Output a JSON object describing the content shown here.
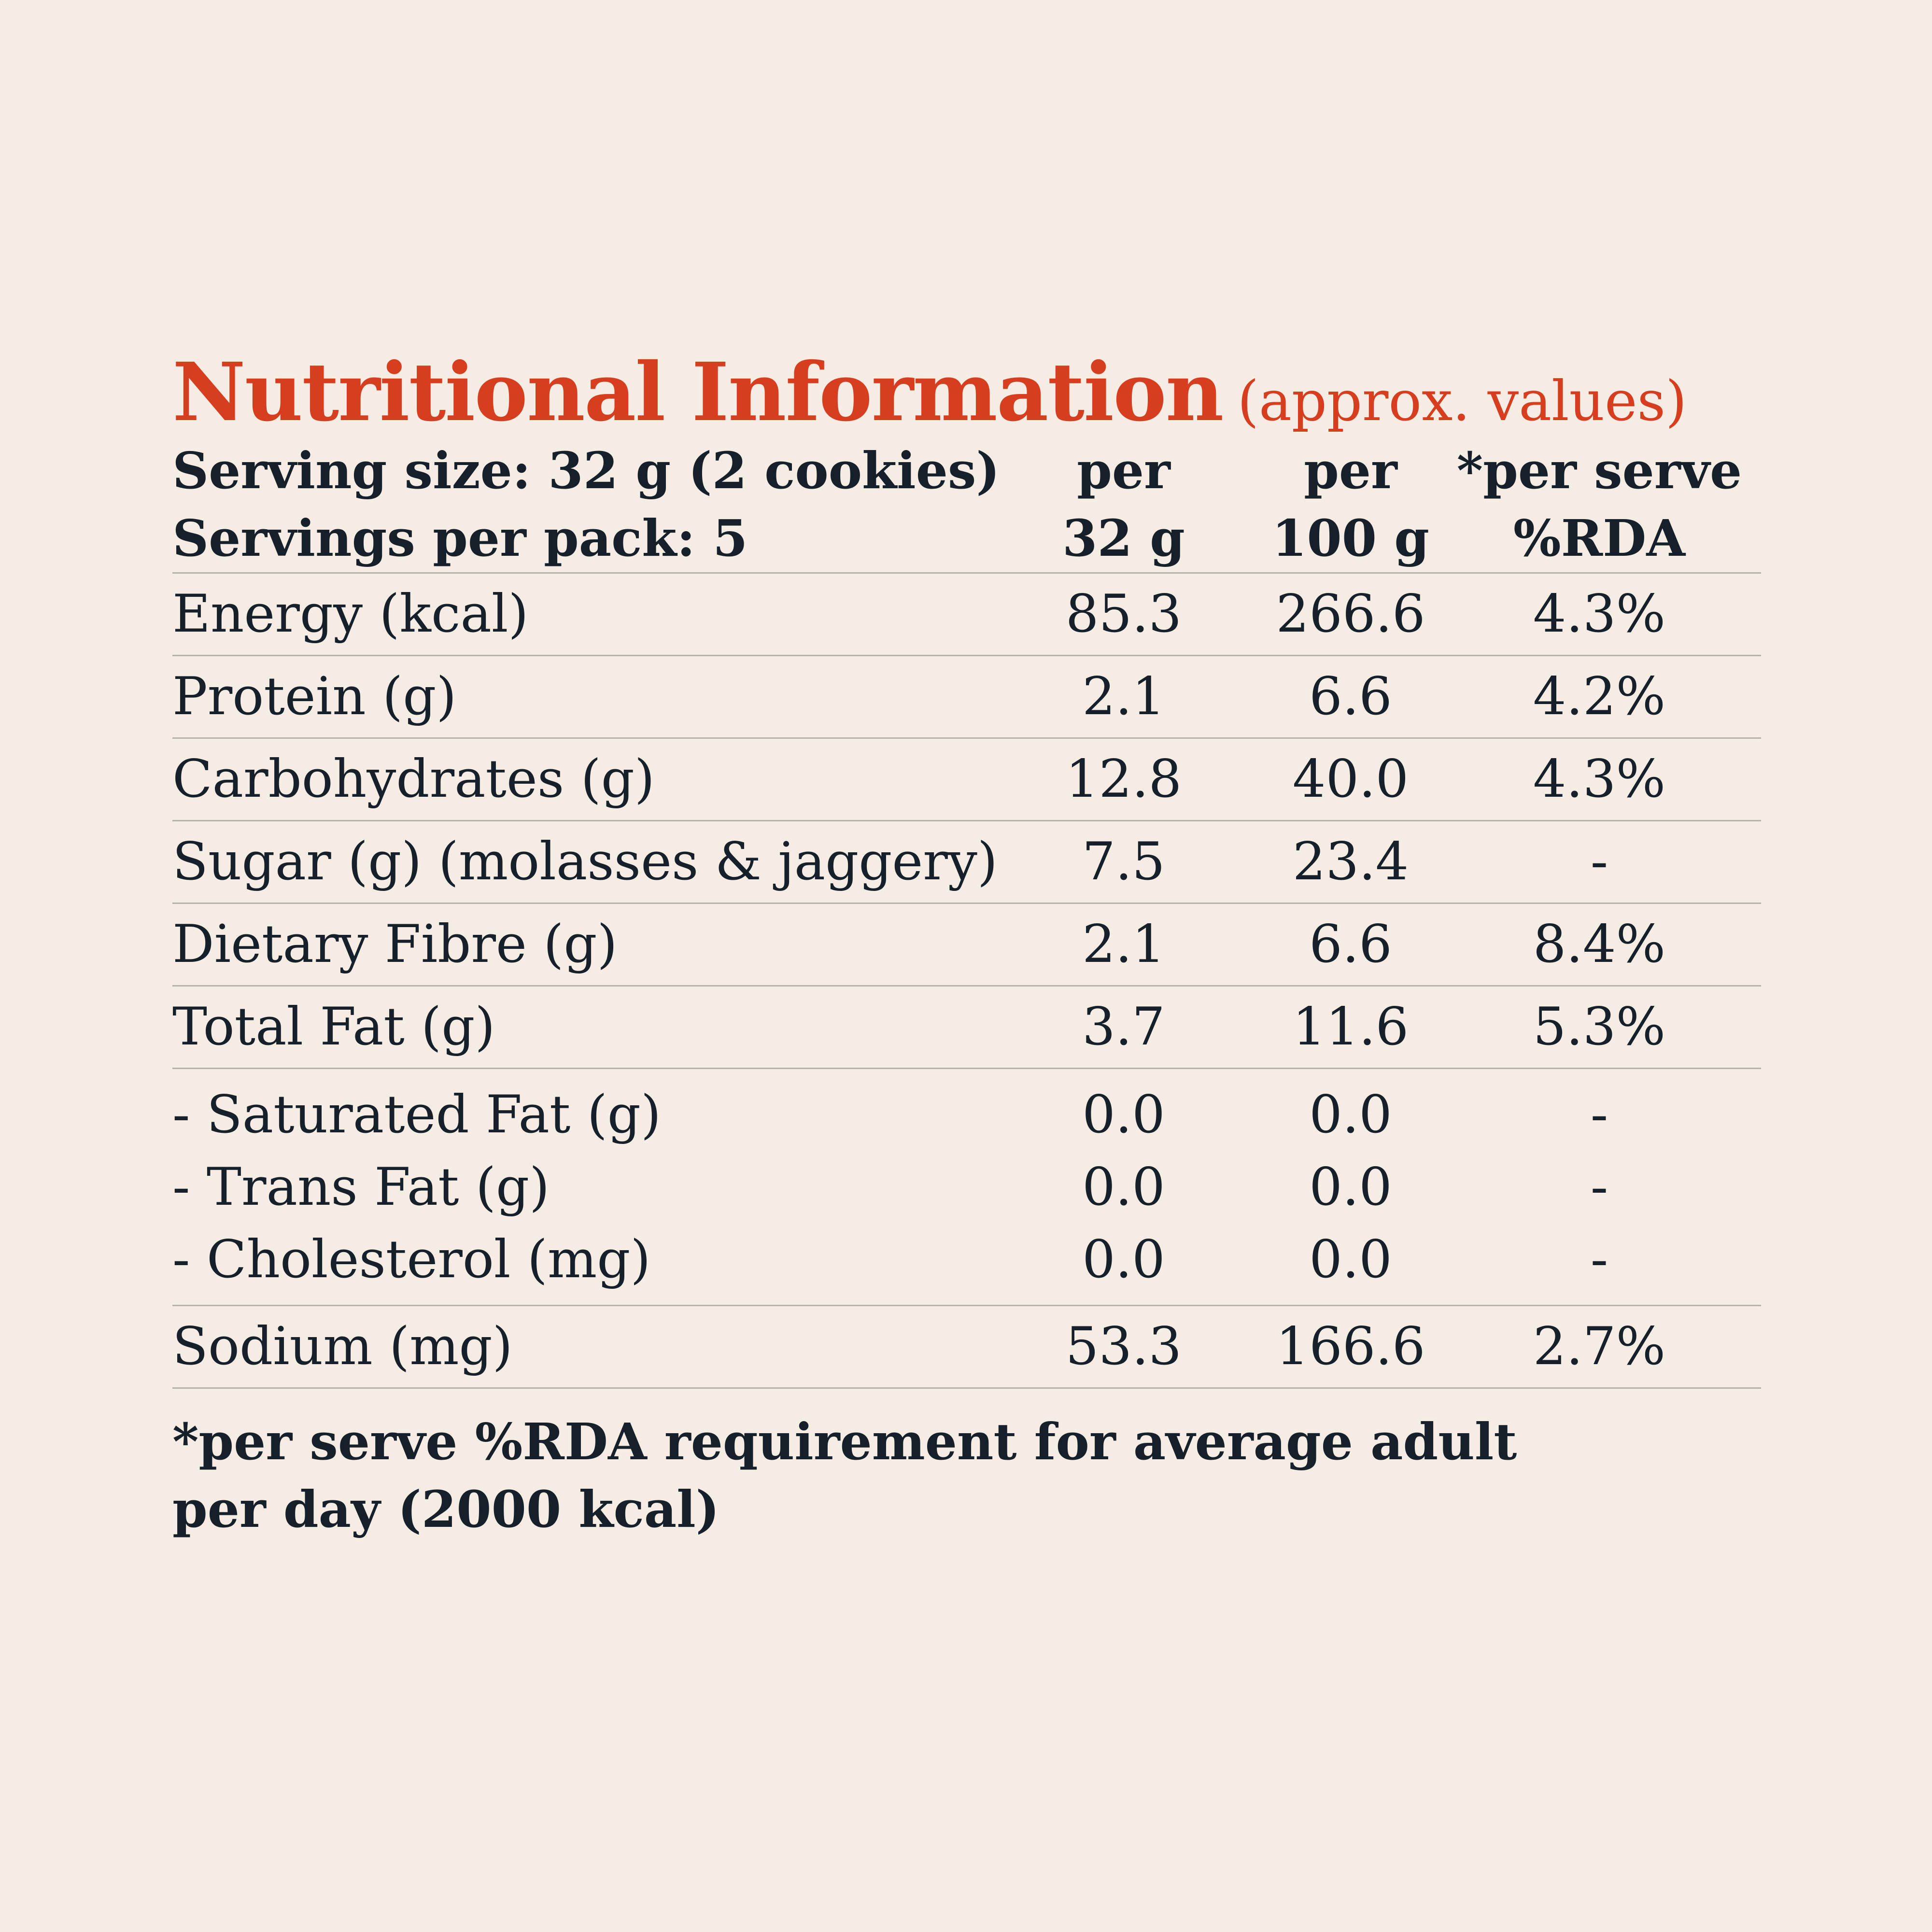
{
  "title": {
    "main": "Nutritional Information",
    "sub": "(approx. values)"
  },
  "colors": {
    "background": "#f5ece3",
    "title": "#d63e1f",
    "text": "#15202b",
    "rule": "#b7b1a8"
  },
  "header": {
    "serving_size": "Serving size: 32 g (2 cookies)",
    "servings_per_pack": "Servings per pack: 5",
    "col1_line1": "per",
    "col1_line2": "32 g",
    "col2_line1": "per",
    "col2_line2": "100 g",
    "col3_line1": "*per serve",
    "col3_line2": "%RDA"
  },
  "rows": [
    {
      "label": "Energy (kcal)",
      "per_serve": "85.3",
      "per_100g": "266.6",
      "rda": "4.3%"
    },
    {
      "label": "Protein (g)",
      "per_serve": "2.1",
      "per_100g": "6.6",
      "rda": "4.2%"
    },
    {
      "label": "Carbohydrates (g)",
      "per_serve": "12.8",
      "per_100g": "40.0",
      "rda": "4.3%"
    },
    {
      "label": "Sugar (g) (molasses & jaggery)",
      "per_serve": "7.5",
      "per_100g": "23.4",
      "rda": "-"
    },
    {
      "label": "Dietary Fibre (g)",
      "per_serve": "2.1",
      "per_100g": "6.6",
      "rda": "8.4%"
    },
    {
      "label": "Total Fat (g)",
      "per_serve": "3.7",
      "per_100g": "11.6",
      "rda": "5.3%"
    }
  ],
  "fat_subrows": [
    {
      "label": "- Saturated Fat (g)",
      "per_serve": "0.0",
      "per_100g": "0.0",
      "rda": "-"
    },
    {
      "label": "- Trans Fat (g)",
      "per_serve": "0.0",
      "per_100g": "0.0",
      "rda": "-"
    },
    {
      "label": "- Cholesterol (mg)",
      "per_serve": "0.0",
      "per_100g": "0.0",
      "rda": "-"
    }
  ],
  "sodium": {
    "label": "Sodium (mg)",
    "per_serve": "53.3",
    "per_100g": "166.6",
    "rda": "2.7%"
  },
  "footnote": {
    "line1": "*per serve %RDA requirement for average adult",
    "line2": "per day (2000 kcal)"
  }
}
